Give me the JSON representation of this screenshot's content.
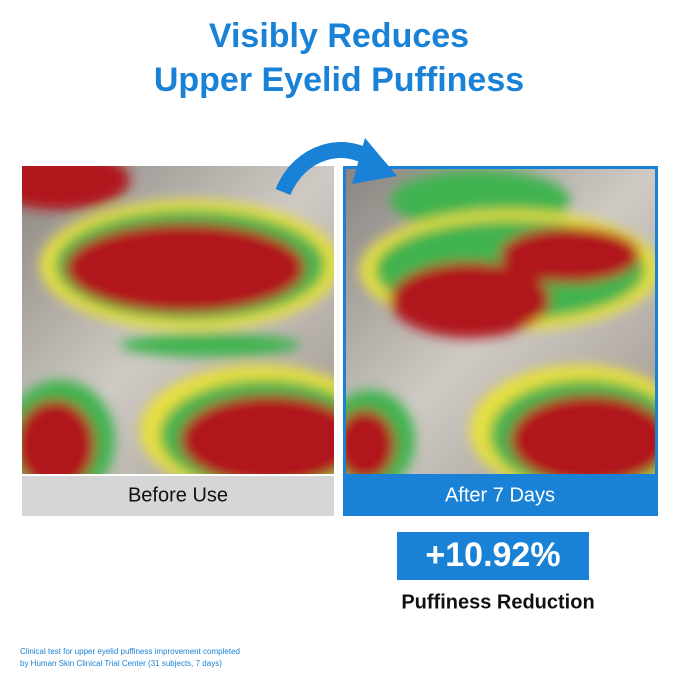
{
  "header": {
    "title_lines": [
      "Visibly Reduces",
      "Upper Eyelid Puffiness"
    ]
  },
  "panels": [
    {
      "label": "Before Use"
    },
    {
      "label": "After 7 Days"
    }
  ],
  "result": {
    "stat": "+10.92%",
    "caption": "Puffiness Reduction"
  },
  "footnote": [
    "Clinical test for upper eyelid puffiness improvement completed",
    "by Human Skin Clinical Trial Center (31 subjects, 7 days)"
  ]
}
